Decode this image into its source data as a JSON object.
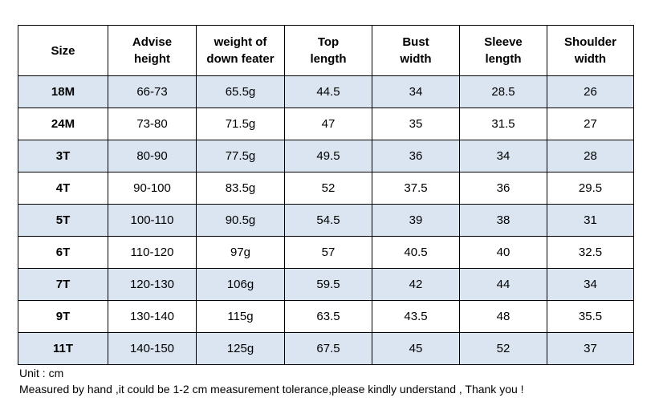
{
  "table": {
    "columns": [
      {
        "lines": [
          "Size"
        ]
      },
      {
        "lines": [
          "Advise",
          "height"
        ]
      },
      {
        "lines": [
          "weight of",
          "down feater"
        ]
      },
      {
        "lines": [
          "Top",
          "length"
        ]
      },
      {
        "lines": [
          "Bust",
          "width"
        ]
      },
      {
        "lines": [
          "Sleeve",
          "length"
        ]
      },
      {
        "lines": [
          "Shoulder",
          "width"
        ]
      }
    ],
    "rows": [
      [
        "18M",
        "66-73",
        "65.5g",
        "44.5",
        "34",
        "28.5",
        "26"
      ],
      [
        "24M",
        "73-80",
        "71.5g",
        "47",
        "35",
        "31.5",
        "27"
      ],
      [
        "3T",
        "80-90",
        "77.5g",
        "49.5",
        "36",
        "34",
        "28"
      ],
      [
        "4T",
        "90-100",
        "83.5g",
        "52",
        "37.5",
        "36",
        "29.5"
      ],
      [
        "5T",
        "100-110",
        "90.5g",
        "54.5",
        "39",
        "38",
        "31"
      ],
      [
        "6T",
        "110-120",
        "97g",
        "57",
        "40.5",
        "40",
        "32.5"
      ],
      [
        "7T",
        "120-130",
        "106g",
        "59.5",
        "42",
        "44",
        "34"
      ],
      [
        "9T",
        "130-140",
        "115g",
        "63.5",
        "43.5",
        "48",
        "35.5"
      ],
      [
        "11T",
        "140-150",
        "125g",
        "67.5",
        "45",
        "52",
        "37"
      ]
    ],
    "shaded_row_color": "#dbe5f1",
    "plain_row_color": "#ffffff",
    "border_color": "#000000"
  },
  "notes": {
    "unit": "Unit : cm",
    "measurement": "Measured by hand ,it could be 1-2 cm measurement tolerance,please kindly understand , Thank you !"
  }
}
